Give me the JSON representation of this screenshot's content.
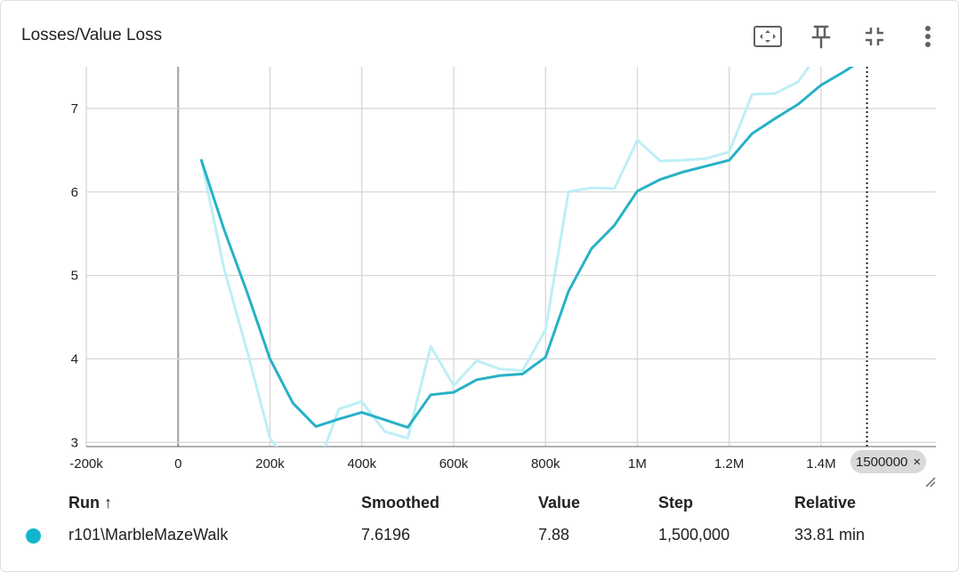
{
  "card": {
    "title": "Losses/Value Loss"
  },
  "toolbar": {
    "fit_icon": "fit-to-domain-icon",
    "pin_icon": "pin-icon",
    "collapse_icon": "collapse-icon",
    "more_icon": "more-vertical-icon"
  },
  "colors": {
    "smoothed": "#27b1c6",
    "raw": "#bdeff6",
    "grid": "#d7d7d7",
    "run_dot": "#12b5cb"
  },
  "chart_data": {
    "type": "line",
    "title": "Losses/Value Loss",
    "xlabel": "",
    "ylabel": "",
    "xlim": [
      -200000,
      1650000
    ],
    "ylim": [
      2.95,
      7.5
    ],
    "x_ticks": [
      -200000,
      0,
      200000,
      400000,
      600000,
      800000,
      1000000,
      1200000,
      1400000
    ],
    "x_tick_labels": [
      "-200k",
      "0",
      "200k",
      "400k",
      "600k",
      "800k",
      "1M",
      "1.2M",
      "1.4M"
    ],
    "y_ticks": [
      3,
      4,
      5,
      6,
      7
    ],
    "y_tick_labels": [
      "3",
      "4",
      "5",
      "6",
      "7"
    ],
    "grid": true,
    "hover_step_marker": 1500000,
    "series": [
      {
        "name": "r101\\MarbleMazeWalk (smoothed)",
        "x": [
          50000,
          100000,
          150000,
          200000,
          250000,
          300000,
          350000,
          400000,
          450000,
          500000,
          550000,
          600000,
          650000,
          700000,
          750000,
          800000,
          850000,
          900000,
          950000,
          1000000,
          1050000,
          1100000,
          1150000,
          1200000,
          1250000,
          1300000,
          1350000,
          1400000,
          1450000,
          1500000
        ],
        "values": [
          6.39,
          5.55,
          4.8,
          4.0,
          3.47,
          3.19,
          3.28,
          3.36,
          3.27,
          3.18,
          3.57,
          3.6,
          3.75,
          3.8,
          3.82,
          4.02,
          4.81,
          5.32,
          5.6,
          6.01,
          6.15,
          6.24,
          6.31,
          6.38,
          6.7,
          6.88,
          7.05,
          7.28,
          7.44,
          7.62
        ]
      },
      {
        "name": "r101\\MarbleMazeWalk",
        "x": [
          50000,
          100000,
          150000,
          200000,
          250000,
          300000,
          350000,
          400000,
          450000,
          500000,
          550000,
          600000,
          650000,
          700000,
          750000,
          800000,
          850000,
          900000,
          950000,
          1000000,
          1050000,
          1100000,
          1150000,
          1200000,
          1250000,
          1300000,
          1350000,
          1400000,
          1450000,
          1500000
        ],
        "values": [
          6.4,
          5.08,
          4.1,
          3.05,
          2.7,
          2.65,
          3.4,
          3.49,
          3.13,
          3.05,
          4.15,
          3.68,
          3.98,
          3.88,
          3.86,
          4.35,
          6.0,
          6.05,
          6.04,
          6.62,
          6.37,
          6.38,
          6.4,
          6.48,
          7.17,
          7.18,
          7.32,
          7.7,
          7.8,
          7.88
        ]
      }
    ]
  },
  "step_chip": {
    "label": "1500000",
    "close": "×"
  },
  "table": {
    "headers": {
      "run": "Run ↑",
      "smoothed": "Smoothed",
      "value": "Value",
      "step": "Step",
      "relative": "Relative"
    },
    "rows": [
      {
        "run": "r101\\MarbleMazeWalk",
        "smoothed": "7.6196",
        "value": "7.88",
        "step": "1,500,000",
        "relative": "33.81 min"
      }
    ]
  }
}
